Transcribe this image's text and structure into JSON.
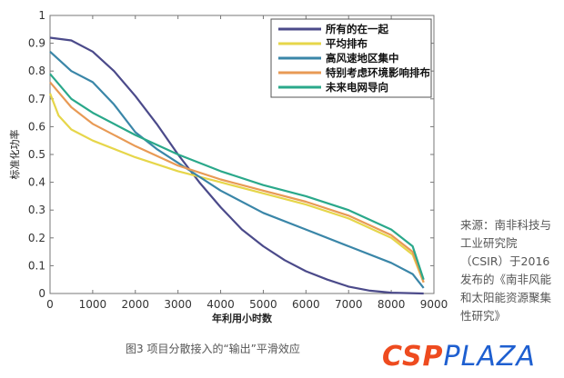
{
  "chart_data": {
    "type": "line",
    "title": "",
    "xlabel": "年利用小时数",
    "ylabel": "标准化功率",
    "xlim": [
      0,
      9000
    ],
    "ylim": [
      0,
      1
    ],
    "xticks": [
      "0",
      "1000",
      "2000",
      "3000",
      "4000",
      "5000",
      "6000",
      "7000",
      "8000",
      "9000"
    ],
    "yticks": [
      "0",
      "0.1",
      "0.2",
      "0.3",
      "0.4",
      "0.5",
      "0.6",
      "0.7",
      "0.8",
      "0.9",
      "1"
    ],
    "grid": false,
    "legend_position": "top-right",
    "series": [
      {
        "name": "所有的在一起",
        "color": "#4b4a8a",
        "x": [
          0,
          500,
          1000,
          1500,
          2000,
          2500,
          3000,
          3500,
          4000,
          4500,
          5000,
          5500,
          6000,
          6500,
          7000,
          7500,
          8000,
          8760
        ],
        "y": [
          0.92,
          0.91,
          0.87,
          0.8,
          0.71,
          0.61,
          0.5,
          0.4,
          0.31,
          0.23,
          0.17,
          0.12,
          0.08,
          0.05,
          0.025,
          0.01,
          0.003,
          0
        ]
      },
      {
        "name": "平均排布",
        "color": "#e6d64a",
        "x": [
          0,
          200,
          500,
          1000,
          2000,
          3000,
          4000,
          5000,
          6000,
          7000,
          8000,
          8500,
          8760
        ],
        "y": [
          0.72,
          0.64,
          0.59,
          0.55,
          0.49,
          0.44,
          0.4,
          0.36,
          0.32,
          0.27,
          0.2,
          0.14,
          0.04
        ]
      },
      {
        "name": "高风速地区集中",
        "color": "#3a86a8",
        "x": [
          0,
          500,
          1000,
          1500,
          2000,
          2500,
          3000,
          3500,
          4000,
          5000,
          6000,
          7000,
          8000,
          8500,
          8760
        ],
        "y": [
          0.87,
          0.8,
          0.76,
          0.68,
          0.58,
          0.52,
          0.47,
          0.42,
          0.37,
          0.29,
          0.23,
          0.17,
          0.11,
          0.07,
          0.02
        ]
      },
      {
        "name": "特别考虑环境影响排布",
        "color": "#e89a55",
        "x": [
          0,
          500,
          1000,
          2000,
          3000,
          4000,
          5000,
          6000,
          7000,
          8000,
          8500,
          8760
        ],
        "y": [
          0.76,
          0.67,
          0.61,
          0.53,
          0.46,
          0.41,
          0.37,
          0.33,
          0.28,
          0.21,
          0.15,
          0.04
        ]
      },
      {
        "name": "未来电网导向",
        "color": "#2aa88a",
        "x": [
          0,
          500,
          1000,
          2000,
          3000,
          4000,
          5000,
          6000,
          7000,
          8000,
          8500,
          8760
        ],
        "y": [
          0.79,
          0.7,
          0.65,
          0.57,
          0.5,
          0.44,
          0.39,
          0.35,
          0.3,
          0.23,
          0.17,
          0.05
        ]
      }
    ]
  },
  "caption": "图3 项目分散接入的“输出”平滑效应",
  "source_note": "来源：南非科技与工业研究院（CSIR）于2016发布的《南非风能和太阳能资源聚集性研究》",
  "logo": {
    "part1": "CSP",
    "part2": "PLAZA"
  }
}
